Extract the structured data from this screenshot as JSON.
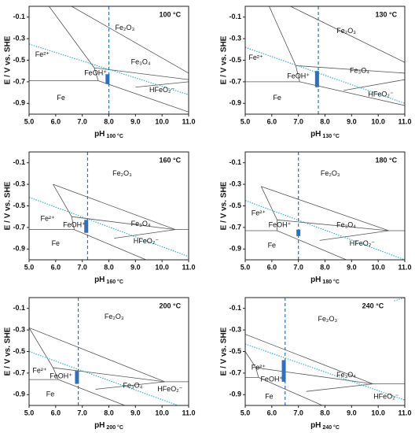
{
  "chart_data": [
    {
      "type": "line",
      "title": "100 °C",
      "xlabel": "pH",
      "xlabel_sub": "100 °C",
      "ylabel": "E / V vs. SHE",
      "xlim": [
        5,
        11
      ],
      "ylim": [
        -1.0,
        0
      ],
      "xticks": [
        {
          "value": 5,
          "label": "5.0"
        },
        {
          "value": 6,
          "label": "6.0"
        },
        {
          "value": 7,
          "label": "7.0"
        },
        {
          "value": 8,
          "label": "8.0"
        },
        {
          "value": 9,
          "label": "9.0"
        },
        {
          "value": 10,
          "label": "10.0"
        },
        {
          "value": 11,
          "label": "11.0"
        }
      ],
      "yticks": [
        -0.1,
        -0.3,
        -0.5,
        -0.7,
        -0.9
      ],
      "labels": [
        "Fe₂O₃",
        "Fe²⁺",
        "FeOH⁺",
        "Fe₃O₄",
        "HFeO₂⁻",
        "Fe"
      ],
      "boundaries": [
        {
          "x": [
            5.75,
            7.45,
            7.6
          ],
          "y": [
            0,
            -0.57,
            -0.69
          ]
        },
        {
          "x": [
            5,
            7.6
          ],
          "y": [
            -0.69,
            -0.69
          ]
        },
        {
          "x": [
            6.6,
            11
          ],
          "y": [
            0,
            -0.62
          ]
        },
        {
          "x": [
            7.45,
            11
          ],
          "y": [
            -0.57,
            -0.68
          ]
        },
        {
          "x": [
            7.6,
            11
          ],
          "y": [
            -0.69,
            -0.98
          ]
        },
        {
          "x": [
            9.0,
            11
          ],
          "y": [
            -0.75,
            -0.7
          ]
        }
      ],
      "water": [
        {
          "x": [
            5,
            11
          ],
          "y": [
            -0.35,
            -0.82
          ]
        }
      ],
      "neutral_ph": 8.0,
      "range": {
        "x": 7.95,
        "y": [
          -0.63,
          -0.72
        ]
      },
      "boundary_color": "#555555",
      "water_color": "#1fb3c4",
      "marker_color": "#2b71c0"
    },
    {
      "type": "line",
      "title": "130 °C",
      "xlabel": "pH",
      "xlabel_sub": "130 °C",
      "ylabel": "E / V vs. SHE",
      "xlim": [
        5,
        11
      ],
      "ylim": [
        -1.0,
        0
      ],
      "xticks": [
        {
          "value": 5,
          "label": "5.0"
        },
        {
          "value": 6,
          "label": "6.0"
        },
        {
          "value": 7,
          "label": "7.0"
        },
        {
          "value": 8,
          "label": "8.0"
        },
        {
          "value": 9,
          "label": "9.0"
        },
        {
          "value": 10,
          "label": "10.0"
        },
        {
          "value": 11,
          "label": "11.0"
        }
      ],
      "yticks": [
        -0.1,
        -0.3,
        -0.5,
        -0.7,
        -0.9
      ],
      "labels": [
        "Fe₂O₃",
        "Fe²⁺",
        "FeOH⁺",
        "Fe₃O₄",
        "HFeO₂⁻",
        "Fe"
      ],
      "boundaries": [
        {
          "x": [
            5.9,
            6.9,
            7.05
          ],
          "y": [
            0,
            -0.55,
            -0.7
          ]
        },
        {
          "x": [
            5,
            7.05
          ],
          "y": [
            -0.7,
            -0.7
          ]
        },
        {
          "x": [
            6.7,
            11
          ],
          "y": [
            0,
            -0.52
          ]
        },
        {
          "x": [
            6.9,
            11
          ],
          "y": [
            -0.55,
            -0.62
          ]
        },
        {
          "x": [
            7.05,
            11
          ],
          "y": [
            -0.7,
            -0.92
          ]
        },
        {
          "x": [
            8.7,
            11
          ],
          "y": [
            -0.78,
            -0.68
          ]
        }
      ],
      "water": [
        {
          "x": [
            5,
            11
          ],
          "y": [
            -0.38,
            -0.9
          ]
        }
      ],
      "neutral_ph": 7.75,
      "range": {
        "x": 7.7,
        "y": [
          -0.6,
          -0.75
        ]
      },
      "boundary_color": "#555555",
      "water_color": "#1fb3c4",
      "marker_color": "#2b71c0"
    },
    {
      "type": "line",
      "title": "160 °C",
      "xlabel": "pH",
      "xlabel_sub": "160 °C",
      "ylabel": "E / V vs. SHE",
      "xlim": [
        5,
        11
      ],
      "ylim": [
        -1.0,
        0
      ],
      "xticks": [
        {
          "value": 5,
          "label": "5.0"
        },
        {
          "value": 6,
          "label": "6.0"
        },
        {
          "value": 7,
          "label": "7.0"
        },
        {
          "value": 8,
          "label": "8.0"
        },
        {
          "value": 9,
          "label": "9.0"
        },
        {
          "value": 10,
          "label": "10.0"
        },
        {
          "value": 11,
          "label": "11.0"
        }
      ],
      "yticks": [
        -0.1,
        -0.3,
        -0.5,
        -0.7,
        -0.9
      ],
      "labels": [
        "Fe₂O₃",
        "Fe²⁺",
        "FeOH⁺",
        "Fe₃O₄",
        "HFeO₂⁻",
        "Fe"
      ],
      "boundaries": [
        {
          "x": [
            5.9,
            6.6,
            6.7
          ],
          "y": [
            -0.3,
            -0.6,
            -0.72
          ]
        },
        {
          "x": [
            5,
            6.7
          ],
          "y": [
            -0.72,
            -0.72
          ]
        },
        {
          "x": [
            5.9,
            10.5,
            11
          ],
          "y": [
            -0.3,
            -0.72,
            -0.72
          ]
        },
        {
          "x": [
            6.6,
            10.5
          ],
          "y": [
            -0.6,
            -0.72
          ]
        },
        {
          "x": [
            6.7,
            9.4
          ],
          "y": [
            -0.72,
            -1.0
          ]
        },
        {
          "x": [
            8.2,
            10.5
          ],
          "y": [
            -0.8,
            -0.72
          ]
        }
      ],
      "water": [
        {
          "x": [
            5,
            11
          ],
          "y": [
            -0.42,
            -0.97
          ]
        }
      ],
      "neutral_ph": 7.2,
      "range": {
        "x": 7.15,
        "y": [
          -0.63,
          -0.75
        ]
      },
      "boundary_color": "#555555",
      "water_color": "#1fb3c4",
      "marker_color": "#2b71c0"
    },
    {
      "type": "line",
      "title": "180 °C",
      "xlabel": "pH",
      "xlabel_sub": "180 °C",
      "ylabel": "E / V vs. SHE",
      "xlim": [
        5,
        11
      ],
      "ylim": [
        -1.0,
        0
      ],
      "xticks": [
        {
          "value": 5,
          "label": "5.0"
        },
        {
          "value": 6,
          "label": "6.0"
        },
        {
          "value": 7,
          "label": "7.0"
        },
        {
          "value": 8,
          "label": "8.0"
        },
        {
          "value": 9,
          "label": "9.0"
        },
        {
          "value": 10,
          "label": "10.0"
        },
        {
          "value": 11,
          "label": "11.0"
        }
      ],
      "yticks": [
        -0.1,
        -0.3,
        -0.5,
        -0.7,
        -0.9
      ],
      "labels": [
        "Fe₂O₃",
        "Fe²⁺",
        "FeOH⁺",
        "Fe₃O₄",
        "HFeO₂⁻",
        "Fe"
      ],
      "boundaries": [
        {
          "x": [
            5.6,
            6.2,
            6.2
          ],
          "y": [
            -0.32,
            -0.63,
            -0.73
          ]
        },
        {
          "x": [
            5,
            6.2
          ],
          "y": [
            -0.73,
            -0.73
          ]
        },
        {
          "x": [
            5.6,
            10.4,
            11
          ],
          "y": [
            -0.32,
            -0.73,
            -0.73
          ]
        },
        {
          "x": [
            6.2,
            10.4
          ],
          "y": [
            -0.63,
            -0.73
          ]
        },
        {
          "x": [
            6.2,
            8.8
          ],
          "y": [
            -0.73,
            -1.0
          ]
        },
        {
          "x": [
            7.8,
            10.4
          ],
          "y": [
            -0.82,
            -0.73
          ]
        }
      ],
      "water": [
        {
          "x": [
            5,
            11
          ],
          "y": [
            -0.45,
            -1.0
          ]
        }
      ],
      "neutral_ph": 7.0,
      "range": {
        "x": 7.0,
        "y": [
          -0.72,
          -0.78
        ]
      },
      "boundary_color": "#555555",
      "water_color": "#1fb3c4",
      "marker_color": "#2b71c0"
    },
    {
      "type": "line",
      "title": "200 °C",
      "xlabel": "pH",
      "xlabel_sub": "200 °C",
      "ylabel": "E / V vs. SHE",
      "xlim": [
        5,
        11
      ],
      "ylim": [
        -1.0,
        0
      ],
      "xticks": [
        {
          "value": 5,
          "label": "5.0"
        },
        {
          "value": 6,
          "label": "6.0"
        },
        {
          "value": 7,
          "label": "7.0"
        },
        {
          "value": 8,
          "label": "8.0"
        },
        {
          "value": 9,
          "label": "9.0"
        },
        {
          "value": 10,
          "label": "10.0"
        },
        {
          "value": 11,
          "label": "11.0"
        }
      ],
      "yticks": [
        -0.1,
        -0.3,
        -0.5,
        -0.7,
        -0.9
      ],
      "labels": [
        "Fe₂O₃",
        "Fe²⁺",
        "FeOH⁺",
        "Fe₃O₄",
        "HFeO₂⁻",
        "Fe"
      ],
      "boundaries": [
        {
          "x": [
            5.0,
            5.9,
            6.1
          ],
          "y": [
            -0.28,
            -0.65,
            -0.76
          ]
        },
        {
          "x": [
            5,
            6.1
          ],
          "y": [
            -0.76,
            -0.76
          ]
        },
        {
          "x": [
            5,
            10.1,
            11
          ],
          "y": [
            -0.28,
            -0.78,
            -0.78
          ]
        },
        {
          "x": [
            5.9,
            10.1
          ],
          "y": [
            -0.65,
            -0.78
          ]
        },
        {
          "x": [
            6.1,
            8.6
          ],
          "y": [
            -0.76,
            -1.0
          ]
        },
        {
          "x": [
            7.5,
            10.1
          ],
          "y": [
            -0.85,
            -0.78
          ]
        }
      ],
      "water": [
        {
          "x": [
            5,
            10.6
          ],
          "y": [
            -0.5,
            -1.0
          ]
        }
      ],
      "neutral_ph": 6.85,
      "range": {
        "x": 6.8,
        "y": [
          -0.68,
          -0.8
        ]
      },
      "boundary_color": "#555555",
      "water_color": "#1fb3c4",
      "marker_color": "#2b71c0"
    },
    {
      "type": "line",
      "title": "240 °C",
      "xlabel": "pH",
      "xlabel_sub": "240 °C",
      "ylabel": "E / V vs. SHE",
      "xlim": [
        5,
        11
      ],
      "ylim": [
        -1.0,
        0
      ],
      "xticks": [
        {
          "value": 5,
          "label": "5.0"
        },
        {
          "value": 6,
          "label": "6.0"
        },
        {
          "value": 7,
          "label": "7.0"
        },
        {
          "value": 8,
          "label": "8.0"
        },
        {
          "value": 9,
          "label": "9.0"
        },
        {
          "value": 10,
          "label": "10.0"
        },
        {
          "value": 11,
          "label": "11.0"
        }
      ],
      "yticks": [
        -0.1,
        -0.3,
        -0.5,
        -0.7,
        -0.9
      ],
      "labels": [
        "Fe₂O₃",
        "Fe²⁺",
        "FeOH⁺",
        "Fe₃O₄",
        "HFeO₂⁻",
        "Fe"
      ],
      "boundaries": [
        {
          "x": [
            5,
            5.4,
            5.5
          ],
          "y": [
            -0.5,
            -0.65,
            -0.74
          ]
        },
        {
          "x": [
            5,
            5.5
          ],
          "y": [
            -0.74,
            -0.74
          ]
        },
        {
          "x": [
            5,
            9.8,
            11
          ],
          "y": [
            -0.34,
            -0.8,
            -0.8
          ]
        },
        {
          "x": [
            5.4,
            9.8
          ],
          "y": [
            -0.65,
            -0.8
          ]
        },
        {
          "x": [
            5.5,
            7.9
          ],
          "y": [
            -0.74,
            -1.0
          ]
        },
        {
          "x": [
            7.3,
            9.8
          ],
          "y": [
            -0.87,
            -0.8
          ]
        }
      ],
      "water": [
        {
          "x": [
            5,
            11
          ],
          "y": [
            -0.43,
            -0.95
          ]
        },
        {
          "x": [
            10.6,
            11
          ],
          "y": [
            -0.03,
            0
          ]
        }
      ],
      "neutral_ph": 6.5,
      "range": {
        "x": 6.45,
        "y": [
          -0.58,
          -0.78
        ]
      },
      "boundary_color": "#555555",
      "water_color": "#1fb3c4",
      "marker_color": "#2b71c0"
    }
  ]
}
